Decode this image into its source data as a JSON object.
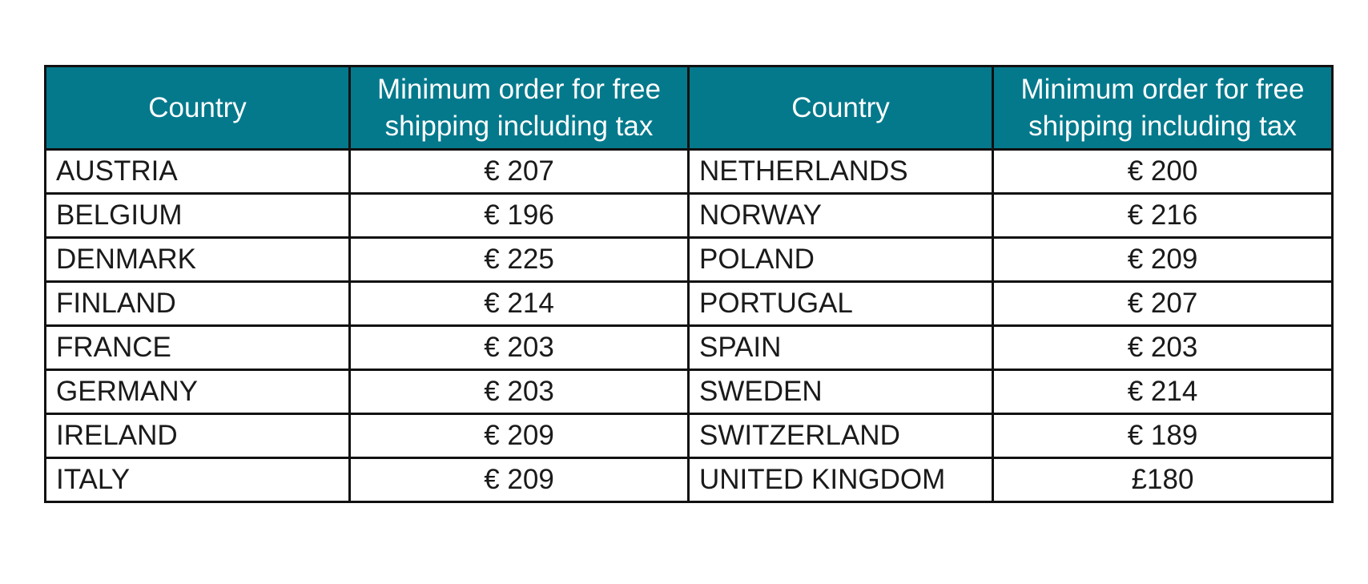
{
  "table": {
    "header": [
      "Country",
      "Minimum order for free shipping including tax",
      "Country",
      "Minimum order for free shipping including tax"
    ],
    "rows": [
      [
        "AUSTRIA",
        "€ 207",
        "NETHERLANDS",
        "€ 200"
      ],
      [
        "BELGIUM",
        "€ 196",
        "NORWAY",
        "€ 216"
      ],
      [
        "DENMARK",
        "€ 225",
        "POLAND",
        "€ 209"
      ],
      [
        "FINLAND",
        "€ 214",
        "PORTUGAL",
        "€ 207"
      ],
      [
        "FRANCE",
        "€ 203",
        "SPAIN",
        "€ 203"
      ],
      [
        "GERMANY",
        "€ 203",
        "SWEDEN",
        "€ 214"
      ],
      [
        "IRELAND",
        "€ 209",
        "SWITZERLAND",
        "€ 189"
      ],
      [
        "ITALY",
        "€ 209",
        "UNITED KINGDOM",
        "£180"
      ]
    ]
  }
}
